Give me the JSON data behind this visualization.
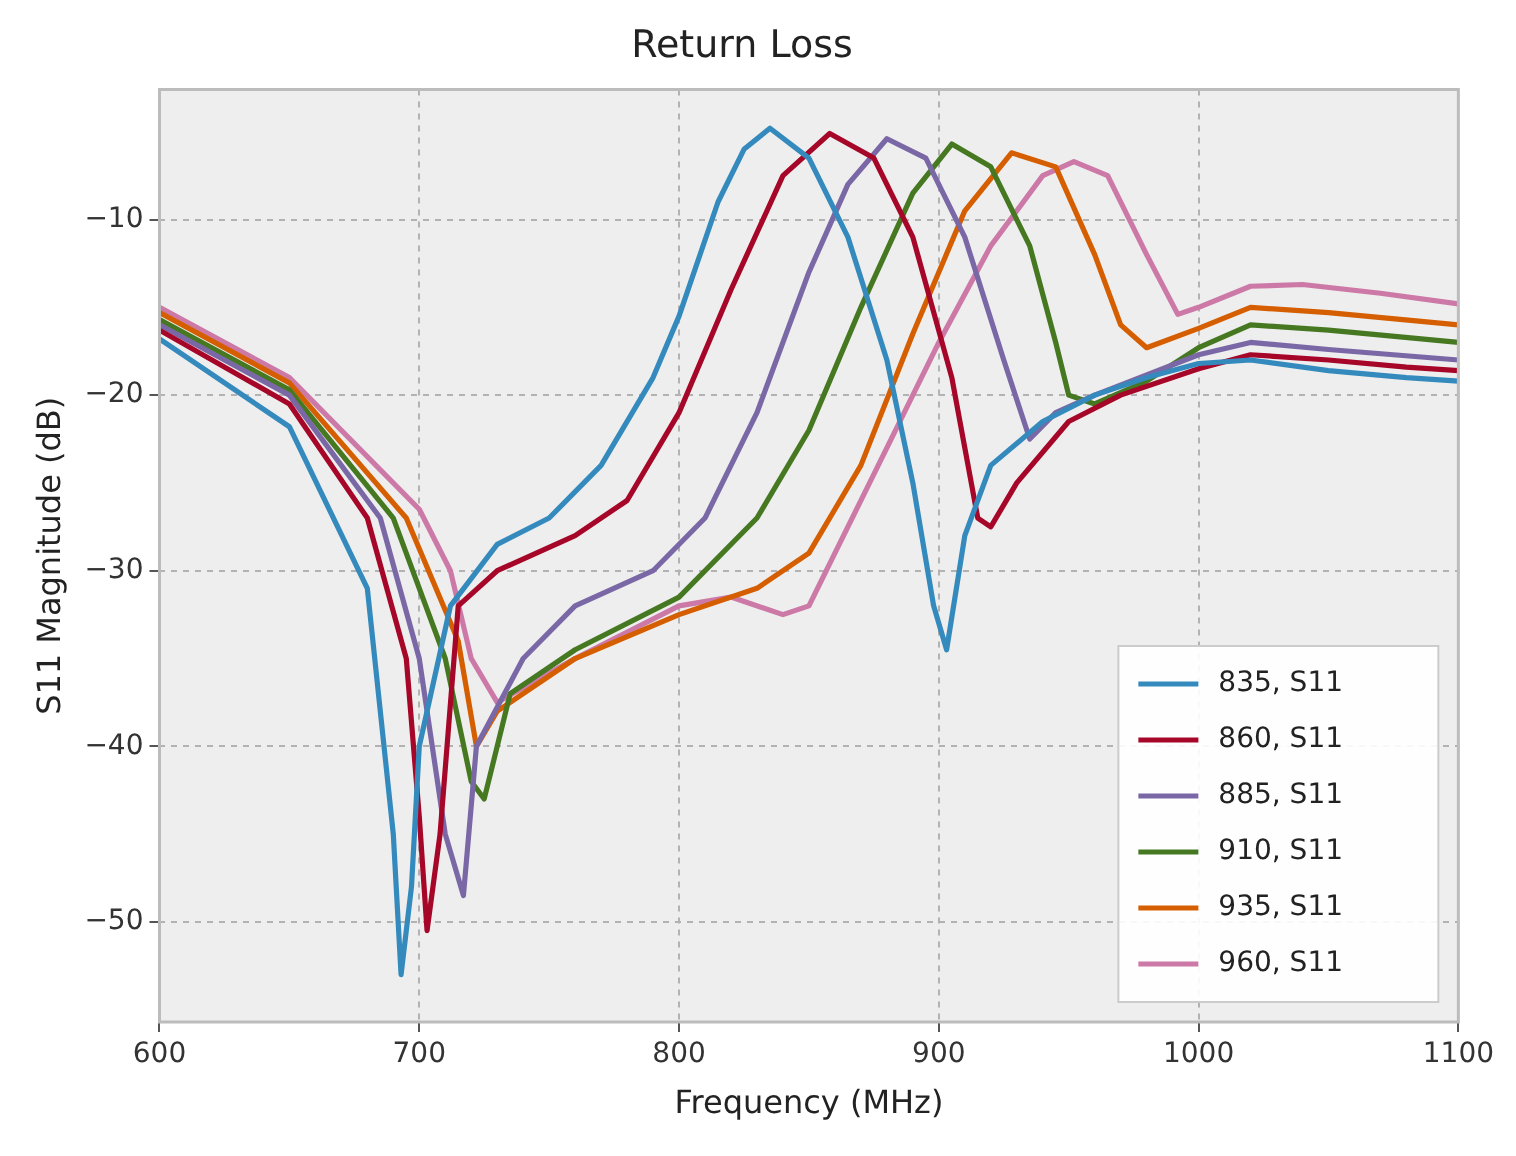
{
  "chart_data": {
    "type": "line",
    "title": "Return Loss",
    "xlabel": "Frequency (MHz)",
    "ylabel": "S11 Magnitude (dB)",
    "xlim": [
      600,
      1100
    ],
    "xticks": [
      600,
      700,
      800,
      900,
      1000,
      1100
    ],
    "ylim": [
      -55.7,
      -2.6
    ],
    "yticks": [
      -50,
      -40,
      -30,
      -20,
      -10
    ],
    "grid": true,
    "legend": "bottom right",
    "marker": "none",
    "line_style": "solid",
    "series": [
      {
        "name": "835, S11",
        "color": "#348abd",
        "x": [
          600,
          650,
          680,
          690,
          693,
          697,
          700,
          712,
          730,
          750,
          770,
          790,
          800,
          815,
          825,
          835,
          850,
          865,
          880,
          890,
          898,
          903,
          910,
          920,
          940,
          960,
          980,
          1000,
          1020,
          1050,
          1080,
          1100
        ],
        "values": [
          -16.8,
          -21.8,
          -31,
          -45,
          -53,
          -48,
          -40,
          -32,
          -28.5,
          -27,
          -24,
          -19,
          -15.5,
          -9,
          -6,
          -4.8,
          -6.5,
          -11,
          -18,
          -25,
          -32,
          -34.5,
          -28,
          -24,
          -21.5,
          -20,
          -19,
          -18.2,
          -18,
          -18.6,
          -19,
          -19.2
        ]
      },
      {
        "name": "860, S11",
        "color": "#a60628",
        "x": [
          600,
          650,
          680,
          695,
          700,
          703,
          708,
          715,
          730,
          760,
          780,
          800,
          820,
          840,
          858,
          875,
          890,
          905,
          915,
          920,
          930,
          950,
          970,
          1000,
          1020,
          1050,
          1080,
          1100
        ],
        "values": [
          -16.3,
          -20.5,
          -27,
          -35,
          -44,
          -50.5,
          -45,
          -32,
          -30,
          -28,
          -26,
          -21,
          -14,
          -7.5,
          -5.1,
          -6.5,
          -11,
          -19,
          -27,
          -27.5,
          -25,
          -21.5,
          -20,
          -18.5,
          -17.7,
          -18,
          -18.4,
          -18.6
        ]
      },
      {
        "name": "885, S11",
        "color": "#7a68a6",
        "x": [
          600,
          650,
          685,
          700,
          710,
          717,
          722,
          740,
          760,
          790,
          810,
          830,
          850,
          865,
          880,
          895,
          910,
          925,
          935,
          945,
          960,
          1000,
          1020,
          1050,
          1100
        ],
        "values": [
          -16,
          -20,
          -27,
          -35,
          -45,
          -48.5,
          -40,
          -35,
          -32,
          -30,
          -27,
          -21,
          -13,
          -8,
          -5.4,
          -6.5,
          -11,
          -18,
          -22.5,
          -21,
          -20,
          -17.7,
          -17,
          -17.4,
          -18
        ]
      },
      {
        "name": "910, S11",
        "color": "#467821",
        "x": [
          600,
          650,
          690,
          710,
          720,
          725,
          735,
          760,
          800,
          830,
          850,
          870,
          890,
          905,
          920,
          935,
          945,
          950,
          960,
          980,
          1000,
          1020,
          1050,
          1100
        ],
        "values": [
          -15.7,
          -19.7,
          -27,
          -35,
          -42,
          -43,
          -37,
          -34.5,
          -31.5,
          -27,
          -22,
          -15,
          -8.5,
          -5.7,
          -7,
          -11.5,
          -17,
          -20,
          -20.5,
          -19.2,
          -17.3,
          -16,
          -16.3,
          -17
        ]
      },
      {
        "name": "935, S11",
        "color": "#d55e00",
        "x": [
          600,
          650,
          695,
          715,
          722,
          730,
          760,
          800,
          830,
          850,
          870,
          890,
          910,
          928,
          945,
          960,
          970,
          980,
          1000,
          1020,
          1050,
          1100
        ],
        "values": [
          -15.3,
          -19.3,
          -27,
          -34,
          -40,
          -38,
          -35,
          -32.5,
          -31,
          -29,
          -24,
          -16.5,
          -9.5,
          -6.2,
          -7,
          -12,
          -16,
          -17.3,
          -16.2,
          -15,
          -15.3,
          -16
        ]
      },
      {
        "name": "960, S11",
        "color": "#cc79a7",
        "x": [
          600,
          650,
          700,
          712,
          720,
          730,
          760,
          800,
          820,
          840,
          850,
          860,
          880,
          900,
          920,
          940,
          952,
          965,
          980,
          992,
          1000,
          1020,
          1040,
          1070,
          1100
        ],
        "values": [
          -15,
          -19,
          -26.5,
          -30,
          -35,
          -37.5,
          -35,
          -32,
          -31.5,
          -32.5,
          -32,
          -29,
          -23,
          -17,
          -11.5,
          -7.5,
          -6.7,
          -7.5,
          -12,
          -15.4,
          -15,
          -13.8,
          -13.7,
          -14.2,
          -14.8
        ]
      }
    ]
  }
}
